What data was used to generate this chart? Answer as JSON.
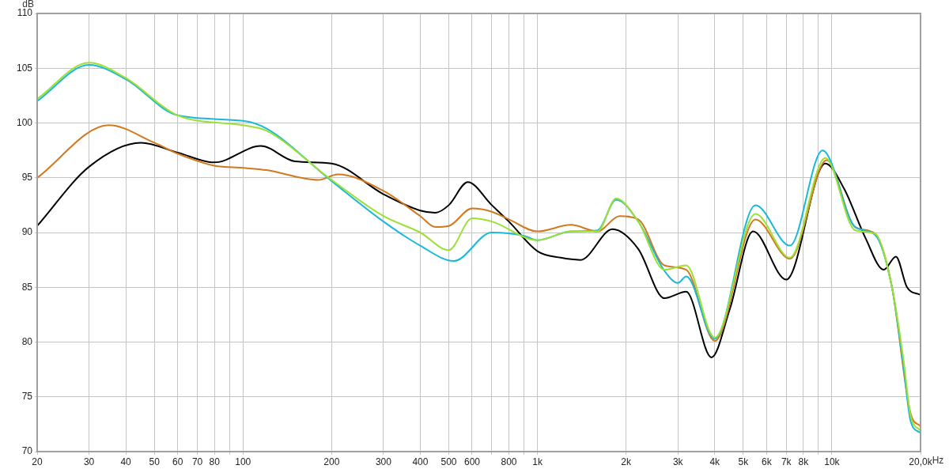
{
  "chart_data": {
    "type": "line",
    "ylabel": "dB",
    "log": "x",
    "grid": true,
    "marker": "none",
    "line_style": "solid",
    "xlim": [
      20,
      20000
    ],
    "ylim": [
      70,
      110
    ],
    "xticks": [
      20,
      30,
      40,
      50,
      60,
      70,
      80,
      {
        "value": 90,
        "label": null
      },
      100,
      200,
      300,
      400,
      500,
      600,
      {
        "value": 700,
        "label": null
      },
      800,
      {
        "value": 900,
        "label": null
      },
      {
        "value": 1000,
        "label": "1k"
      },
      {
        "value": 2000,
        "label": "2k"
      },
      {
        "value": 3000,
        "label": "3k"
      },
      {
        "value": 4000,
        "label": "4k"
      },
      {
        "value": 5000,
        "label": "5k"
      },
      {
        "value": 6000,
        "label": "6k"
      },
      {
        "value": 7000,
        "label": "7k"
      },
      {
        "value": 8000,
        "label": "8k"
      },
      {
        "value": 9000,
        "label": null
      },
      {
        "value": 10000,
        "label": "10k"
      },
      {
        "value": 20000,
        "label": "20,0k"
      }
    ],
    "xlabel": "Hz",
    "yticks": [
      70,
      75,
      80,
      85,
      90,
      95,
      100,
      105,
      110
    ],
    "series": [
      {
        "color": "#000000",
        "x": [
          20,
          30,
          45,
          60,
          80,
          115,
          150,
          200,
          300,
          400,
          450,
          500,
          580,
          700,
          800,
          1000,
          1200,
          1400,
          1800,
          2200,
          2700,
          3200,
          3900,
          4500,
          5400,
          7000,
          9500,
          11000,
          13000,
          15000,
          16500,
          18000,
          20000
        ],
        "values": [
          90.6,
          96,
          98.2,
          97.3,
          96.4,
          97.9,
          96.5,
          96.3,
          93.5,
          92,
          91.8,
          92.5,
          94.6,
          92.5,
          91,
          88.3,
          87.7,
          87.5,
          90.3,
          88.5,
          84,
          84.6,
          78.6,
          83,
          90.1,
          85.7,
          96.3,
          94,
          89.5,
          86.6,
          87.8,
          85,
          84.3
        ]
      },
      {
        "color": "#d2781e",
        "x": [
          20,
          35,
          50,
          60,
          80,
          100,
          120,
          180,
          210,
          300,
          400,
          450,
          500,
          600,
          700,
          800,
          1000,
          1300,
          1600,
          1900,
          2200,
          2700,
          3200,
          4000,
          5500,
          7200,
          9600,
          12000,
          14000,
          16000,
          18500,
          20000
        ],
        "values": [
          95,
          99.8,
          98.2,
          97.2,
          96.1,
          95.9,
          95.7,
          94.8,
          95.3,
          93.8,
          91.5,
          90.5,
          90.6,
          92.2,
          91.9,
          91.2,
          90.1,
          90.7,
          90.1,
          91.5,
          91.2,
          87,
          86.6,
          80.1,
          91.2,
          87.6,
          96.6,
          90.5,
          89.9,
          85,
          73.5,
          72.3
        ]
      },
      {
        "color": "#1ab8d8",
        "x": [
          20,
          30,
          40,
          60,
          100,
          120,
          200,
          300,
          400,
          520,
          700,
          900,
          1000,
          1300,
          1600,
          1850,
          2200,
          2700,
          3000,
          3200,
          4000,
          5500,
          7200,
          9300,
          12000,
          14000,
          16000,
          17500,
          18500,
          20000
        ],
        "values": [
          102,
          105.3,
          104,
          100.7,
          100.2,
          99.5,
          94.7,
          91,
          88.8,
          87.4,
          90,
          89.7,
          89.3,
          90.1,
          90.2,
          93,
          91,
          86.5,
          85.4,
          86,
          80.3,
          92.5,
          88.8,
          97.5,
          90.5,
          89.8,
          85,
          77.8,
          72.8,
          71.7
        ]
      },
      {
        "color": "#9be032",
        "x": [
          20,
          30,
          40,
          60,
          100,
          120,
          200,
          300,
          400,
          500,
          600,
          700,
          1000,
          1300,
          1600,
          1850,
          2200,
          2700,
          3200,
          4000,
          5500,
          7200,
          9500,
          12000,
          14000,
          16000,
          17500,
          18500,
          20000
        ],
        "values": [
          102.2,
          105.5,
          104.1,
          100.7,
          99.8,
          99.3,
          94.8,
          91.5,
          90,
          88.4,
          91.3,
          91,
          89.3,
          90.1,
          90.1,
          93.1,
          91,
          86.6,
          87,
          80.4,
          91.7,
          87.7,
          96.8,
          90.2,
          89.9,
          85,
          78.4,
          73.3,
          71.9
        ]
      }
    ]
  }
}
